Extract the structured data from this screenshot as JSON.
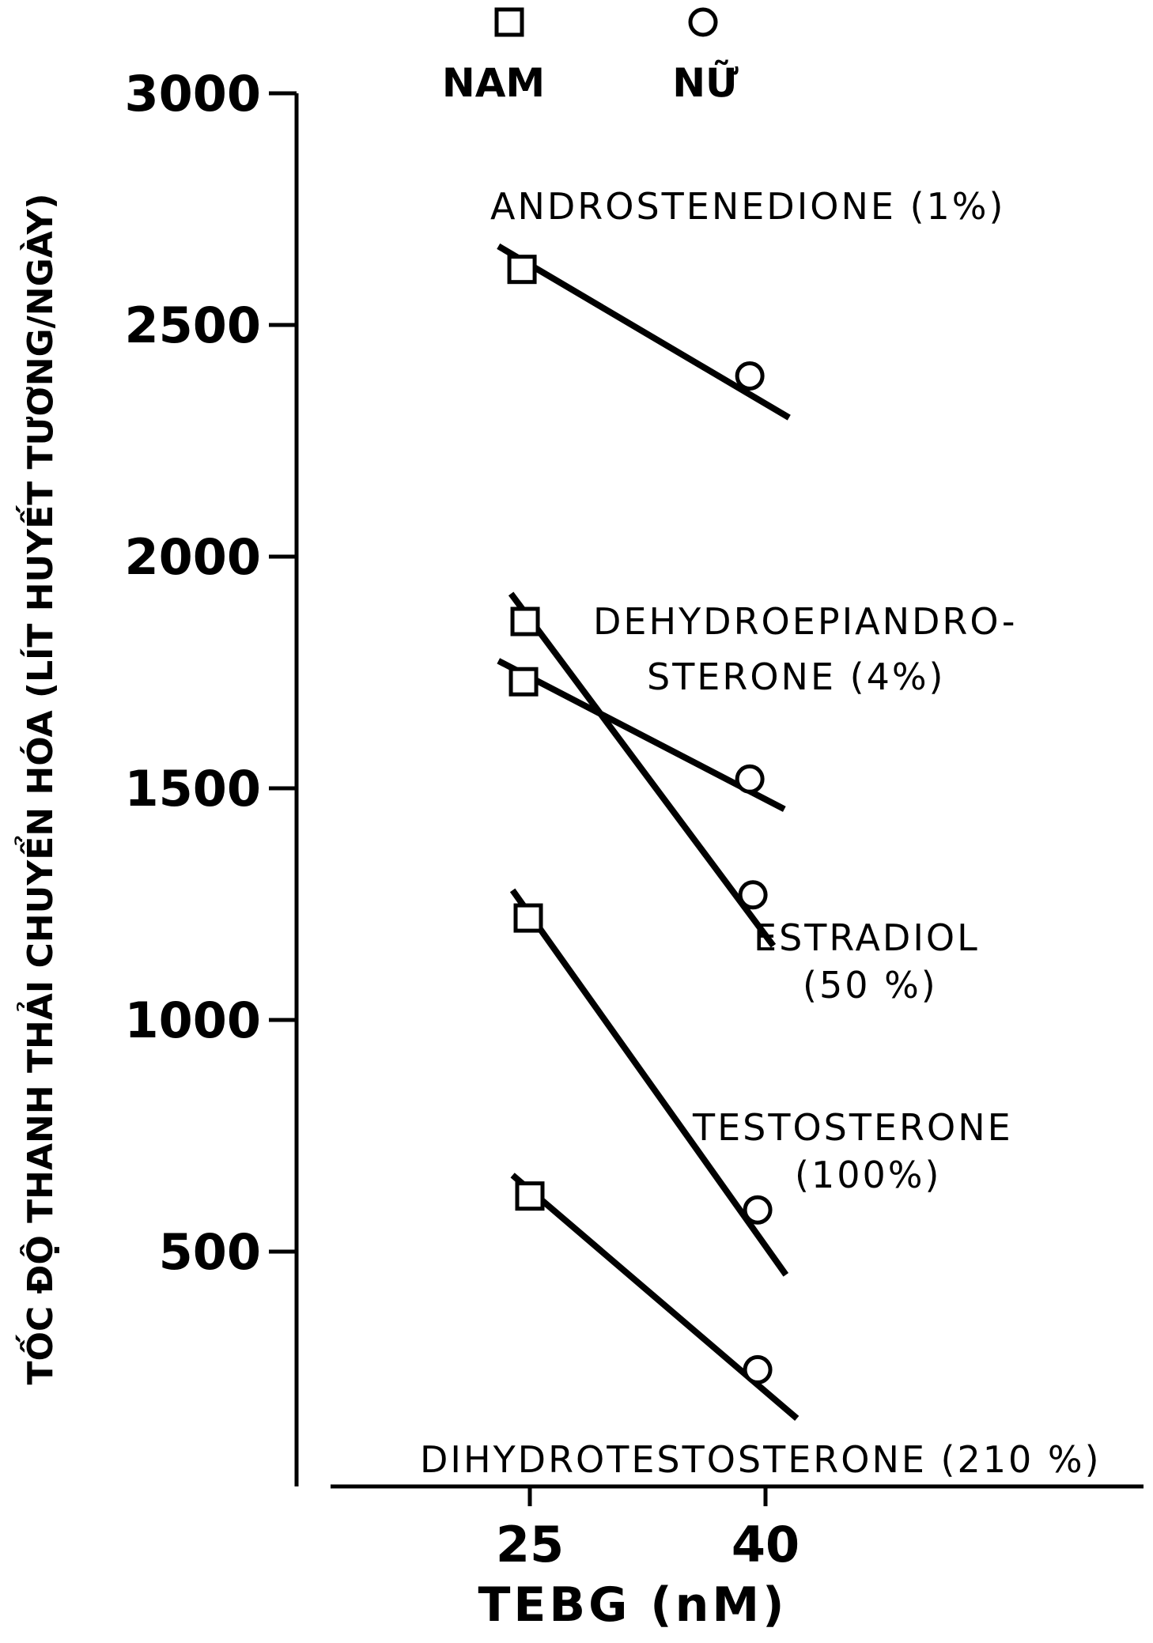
{
  "chart_data": {
    "type": "line",
    "xlabel": "TEBG (nM)",
    "ylabel": "TỐC ĐỘ THANH THẢI CHUYỂN HÓA (LÍT HUYẾT TƯƠNG/NGÀY)",
    "xlim": [
      16,
      60
    ],
    "ylim": [
      0,
      3000
    ],
    "xticks": [
      25,
      40
    ],
    "yticks": [
      500,
      1000,
      1500,
      2000,
      2500,
      3000
    ],
    "grid": false,
    "legend_placement": "top",
    "legend": [
      {
        "marker": "square",
        "label": "NAM"
      },
      {
        "marker": "circle",
        "label": "NỮ"
      }
    ],
    "series": [
      {
        "name": "ANDROSTENEDIONE (1%)",
        "label_lines": [
          "ANDROSTENEDIONE (1%)"
        ],
        "points": [
          {
            "x": 24.5,
            "y": 2620,
            "marker": "square"
          },
          {
            "x": 39.0,
            "y": 2390,
            "marker": "circle"
          }
        ],
        "line": [
          [
            23.0,
            2670
          ],
          [
            41.5,
            2300
          ]
        ]
      },
      {
        "name": "DEHYDROEPIANDROSTERONE (4%)",
        "label_lines": [
          "DEHYDROEPIANDRO-",
          "STERONE (4%)"
        ],
        "points": [
          {
            "x": 24.6,
            "y": 1730,
            "marker": "square"
          },
          {
            "x": 39.0,
            "y": 1520,
            "marker": "circle"
          }
        ],
        "line": [
          [
            23.0,
            1775
          ],
          [
            41.2,
            1455
          ]
        ]
      },
      {
        "name": "ESTRADIOL (50%)",
        "label_lines": [
          "ESTRADIOL",
          "(50 %)"
        ],
        "points": [
          {
            "x": 24.7,
            "y": 1860,
            "marker": "square"
          },
          {
            "x": 39.2,
            "y": 1270,
            "marker": "circle"
          }
        ],
        "line": [
          [
            23.8,
            1920
          ],
          [
            40.5,
            1160
          ]
        ]
      },
      {
        "name": "TESTOSTERONE (100%)",
        "label_lines": [
          "TESTOSTERONE",
          "(100%)"
        ],
        "points": [
          {
            "x": 24.9,
            "y": 1220,
            "marker": "square"
          },
          {
            "x": 39.5,
            "y": 590,
            "marker": "circle"
          }
        ],
        "line": [
          [
            23.9,
            1280
          ],
          [
            41.3,
            450
          ]
        ]
      },
      {
        "name": "DIHYDROTESTOSTERONE (210%)",
        "label_lines": [
          "DIHYDROTESTOSTERONE (210 %)"
        ],
        "points": [
          {
            "x": 25.0,
            "y": 620,
            "marker": "square"
          },
          {
            "x": 39.5,
            "y": 245,
            "marker": "circle"
          }
        ],
        "line": [
          [
            23.9,
            665
          ],
          [
            42.0,
            140
          ]
        ]
      }
    ]
  }
}
